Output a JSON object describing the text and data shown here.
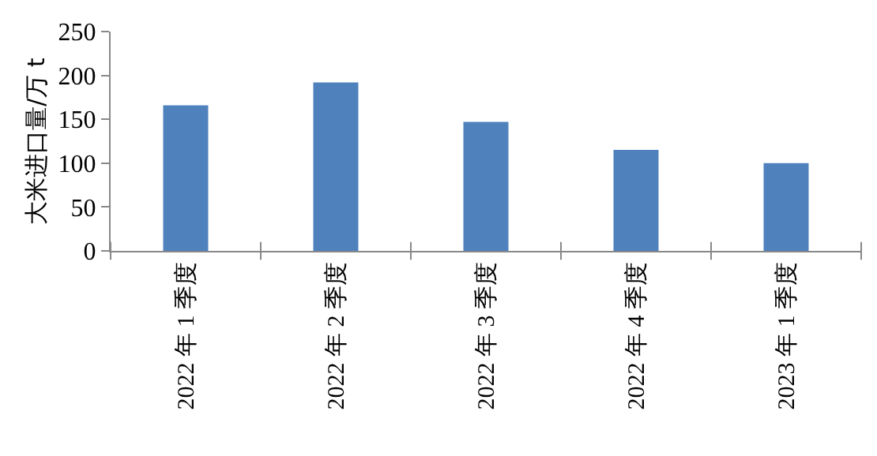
{
  "chart_data": {
    "type": "bar",
    "ylabel": "大米进口量/万 t",
    "categories": [
      "2022 年 1 季度",
      "2022 年 2 季度",
      "2022 年 3 季度",
      "2022 年 4 季度",
      "2023 年 1 季度"
    ],
    "series": [
      {
        "color": "#4f81bd",
        "values": [
          166,
          192,
          147,
          115,
          100
        ]
      }
    ],
    "ylim": [
      0,
      250
    ],
    "yticks": [
      0,
      50,
      100,
      150,
      200,
      250
    ]
  }
}
